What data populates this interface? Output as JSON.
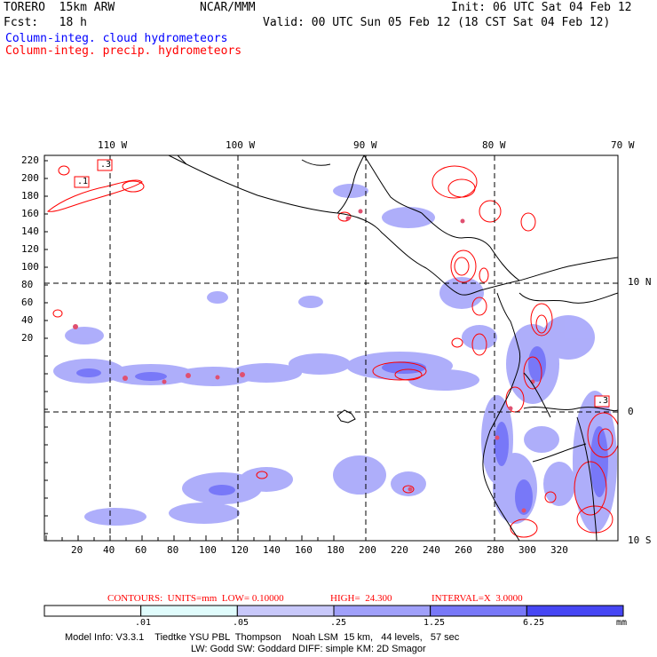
{
  "header": {
    "model": "TORERO  15km ARW",
    "org": "NCAR/MMM",
    "init": "Init: 06 UTC Sat 04 Feb 12",
    "fcst": "Fcst:   18 h",
    "valid": "Valid: 00 UTC Sun 05 Feb 12 (18 CST Sat 04 Feb 12)",
    "field1": "Column-integ. cloud hydrometeors",
    "field2": "Column-integ. precip. hydrometeors",
    "field1_color": "#0000ff",
    "field2_color": "#ff0000"
  },
  "map": {
    "top_lon_labels": [
      "110 W",
      "100 W",
      "90 W",
      "80 W",
      "70 W"
    ],
    "right_lat_labels": [
      "10 N",
      "0",
      "10 S"
    ],
    "left_ticks": [
      "220",
      "200",
      "180",
      "160",
      "140",
      "120",
      "100",
      "80",
      "60",
      "40",
      "20"
    ],
    "bottom_ticks": [
      "20",
      "40",
      "60",
      "80",
      "100",
      "120",
      "140",
      "160",
      "180",
      "200",
      "220",
      "240",
      "260",
      "280",
      "300",
      "320"
    ],
    "contour_box_labels": [
      ".1",
      ".3",
      ".3"
    ]
  },
  "contours_info": {
    "units": "CONTOURS:  UNITS=mm  LOW= 0.10000",
    "high": "HIGH=  24.300",
    "interval": "INTERVAL=X  3.0000"
  },
  "colorbar": {
    "labels": [
      ".01",
      ".05",
      ".25",
      "1.25",
      "6.25"
    ],
    "unit": "mm",
    "colors": [
      "#ffffff",
      "#e0fcfc",
      "#c8c8fa",
      "#a0a0fa",
      "#7878f8",
      "#4646f4",
      "#1e1ef0"
    ]
  },
  "footer": {
    "line1": "Model Info: V3.3.1    Tiedtke YSU PBL  Thompson    Noah LSM  15 km,   44 levels,   57 sec",
    "line2": "LW: Godd SW: Goddard DIFF: simple KM: 2D Smagor"
  }
}
